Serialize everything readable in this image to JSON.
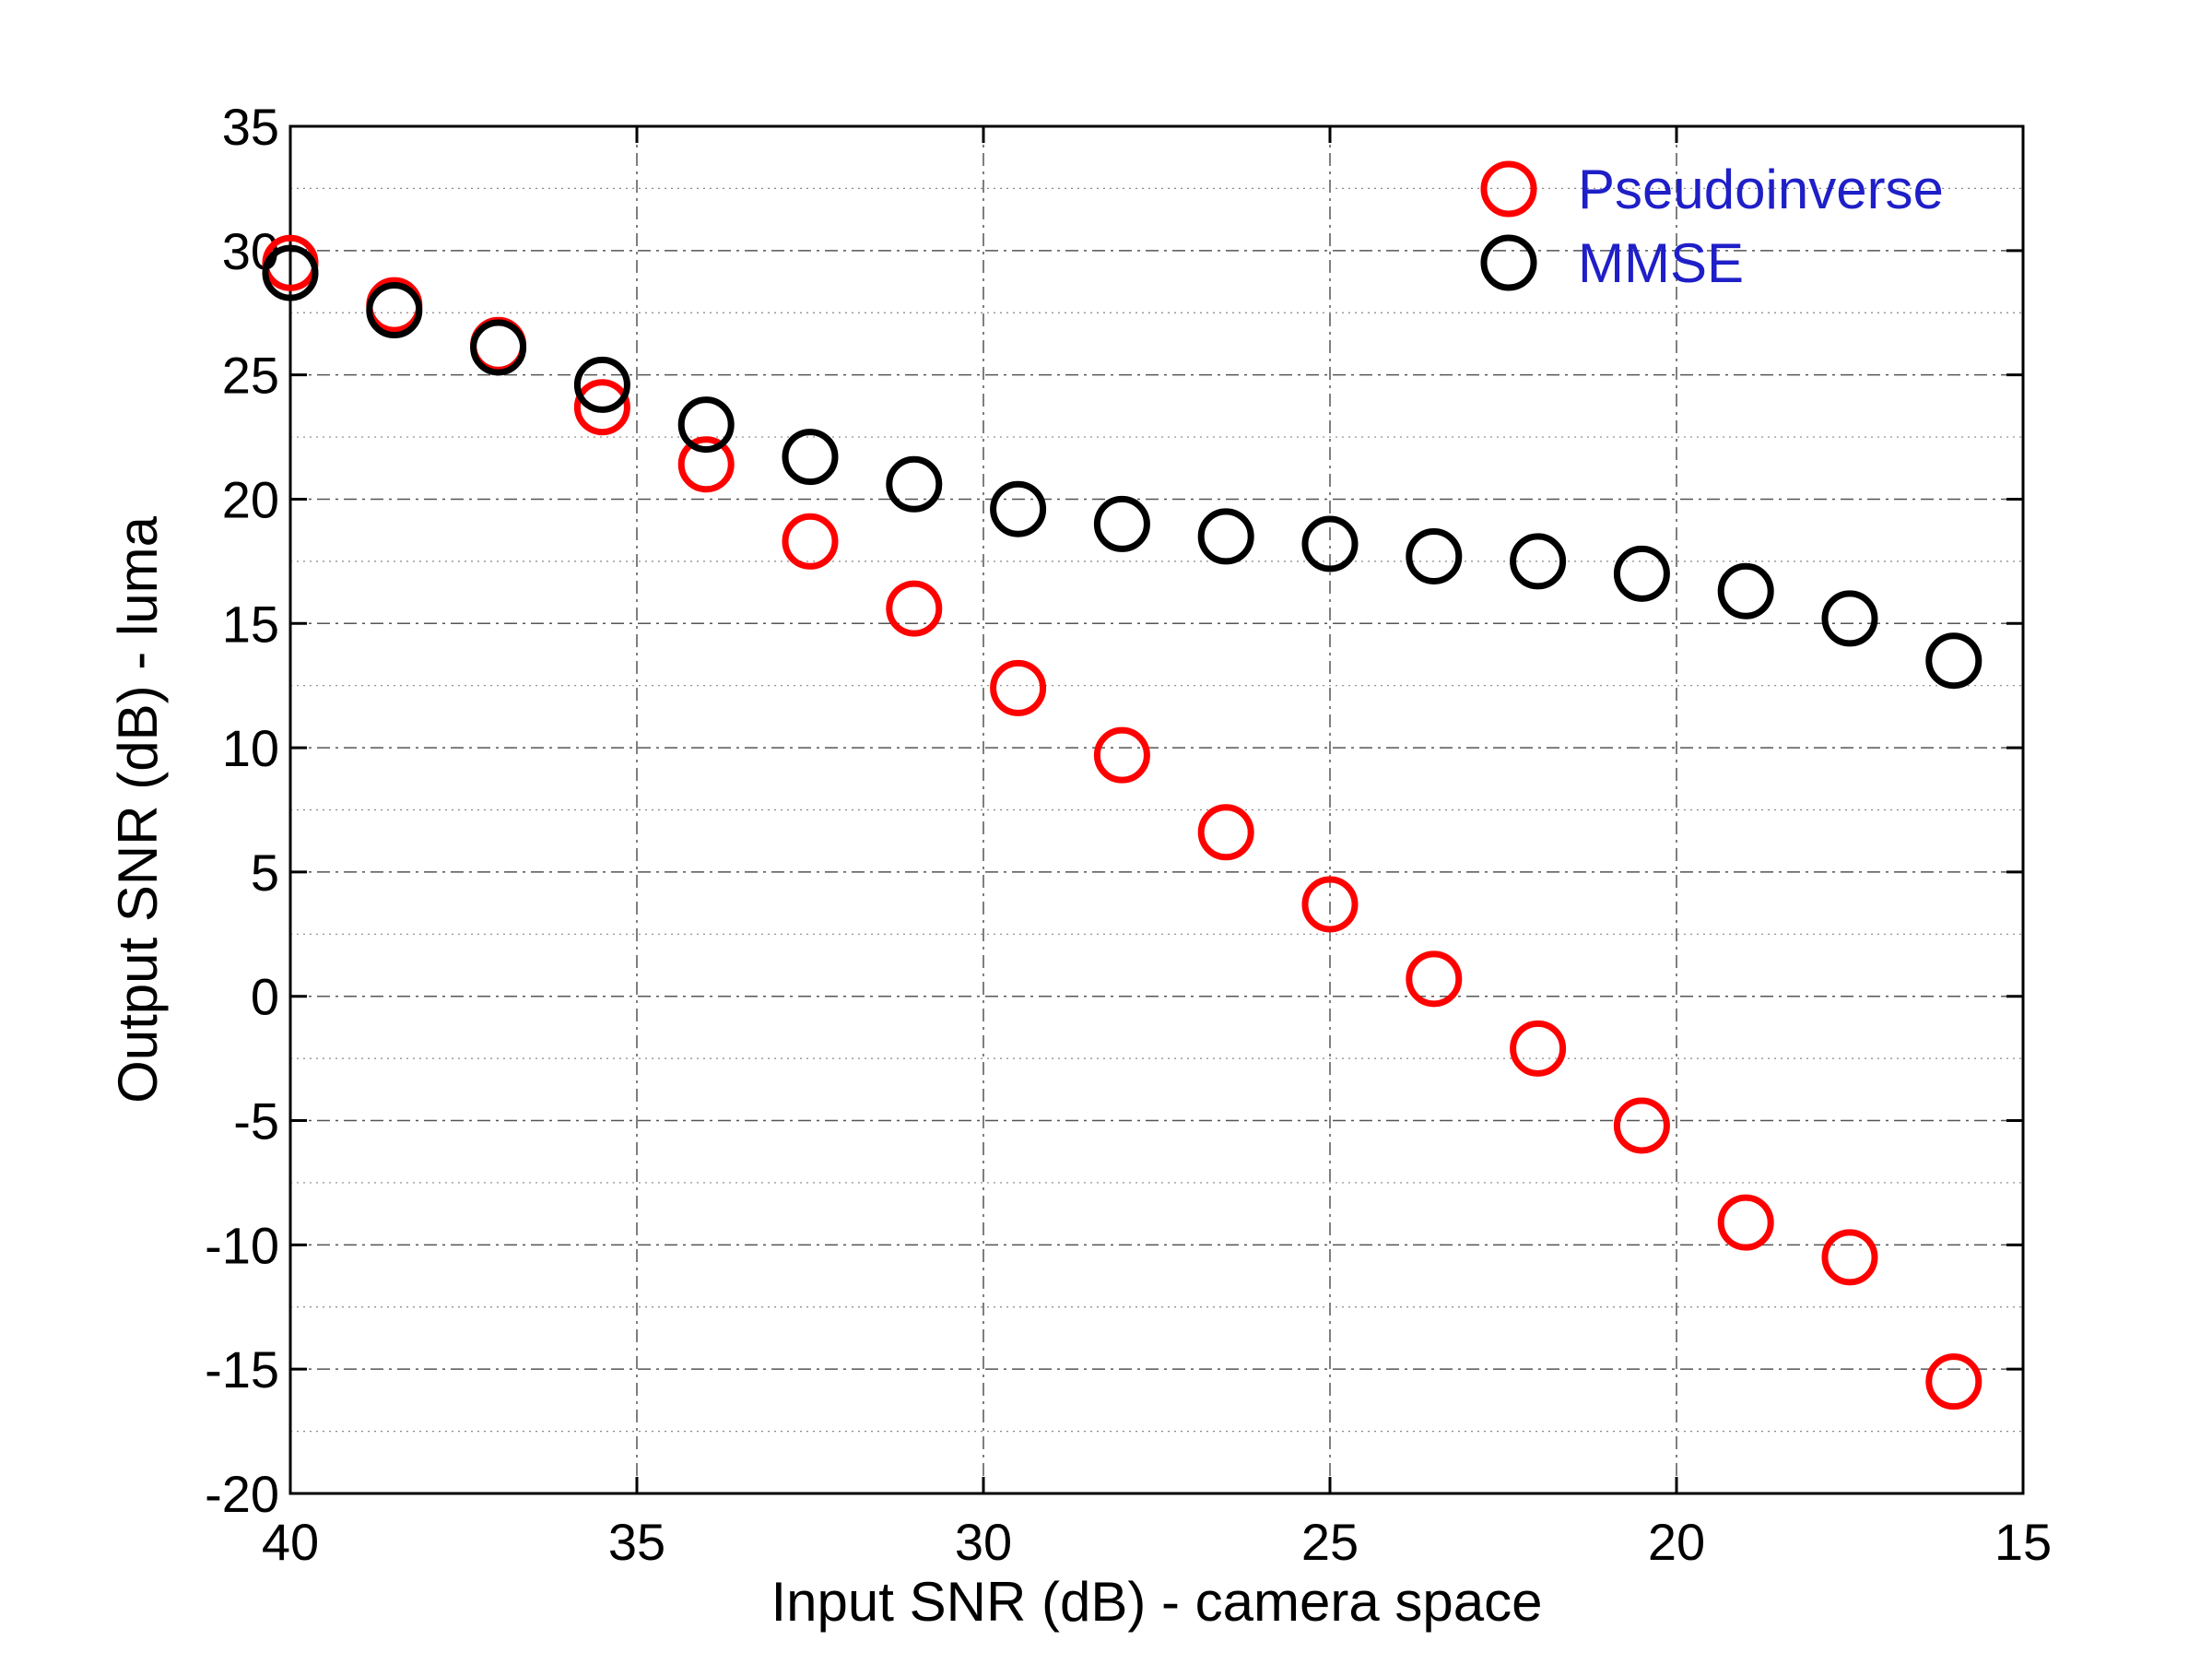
{
  "chart_data": {
    "type": "scatter",
    "title": "",
    "xlabel": "Input SNR (dB) - camera space",
    "ylabel": "Output SNR (dB) - luma",
    "xlim": [
      40,
      15
    ],
    "ylim": [
      -20,
      35
    ],
    "x_reversed": true,
    "grid": true,
    "legend_position": "top-right",
    "xticks": [
      40,
      35,
      30,
      25,
      20,
      15
    ],
    "yticks": [
      35,
      30,
      25,
      20,
      15,
      10,
      5,
      0,
      -5,
      -10,
      -15,
      -20
    ],
    "xtick_labels": [
      "40",
      "35",
      "30",
      "25",
      "20",
      "15"
    ],
    "ytick_labels": [
      "35",
      "30",
      "25",
      "20",
      "15",
      "10",
      "5",
      "0",
      "-5",
      "-10",
      "-15",
      "-20"
    ],
    "x": [
      40,
      38.5,
      37,
      35.5,
      34,
      32.5,
      31,
      29.5,
      28,
      26.5,
      25,
      23.5,
      22,
      20.5,
      19,
      17.5,
      16
    ],
    "series": [
      {
        "name": "Pseudoinverse",
        "color": "#ff0000",
        "values": [
          29.5,
          27.8,
          26.2,
          23.7,
          21.4,
          18.3,
          15.6,
          12.4,
          9.7,
          6.6,
          3.7,
          0.7,
          -2.1,
          -5.2,
          -9.1,
          -10.5,
          -15.5
        ]
      },
      {
        "name": "MMSE",
        "color": "#000000",
        "values": [
          29.1,
          27.6,
          26.1,
          24.6,
          23.0,
          21.7,
          20.6,
          19.6,
          19.0,
          18.5,
          18.2,
          17.7,
          17.5,
          17.0,
          16.3,
          15.2,
          13.5
        ]
      }
    ]
  }
}
